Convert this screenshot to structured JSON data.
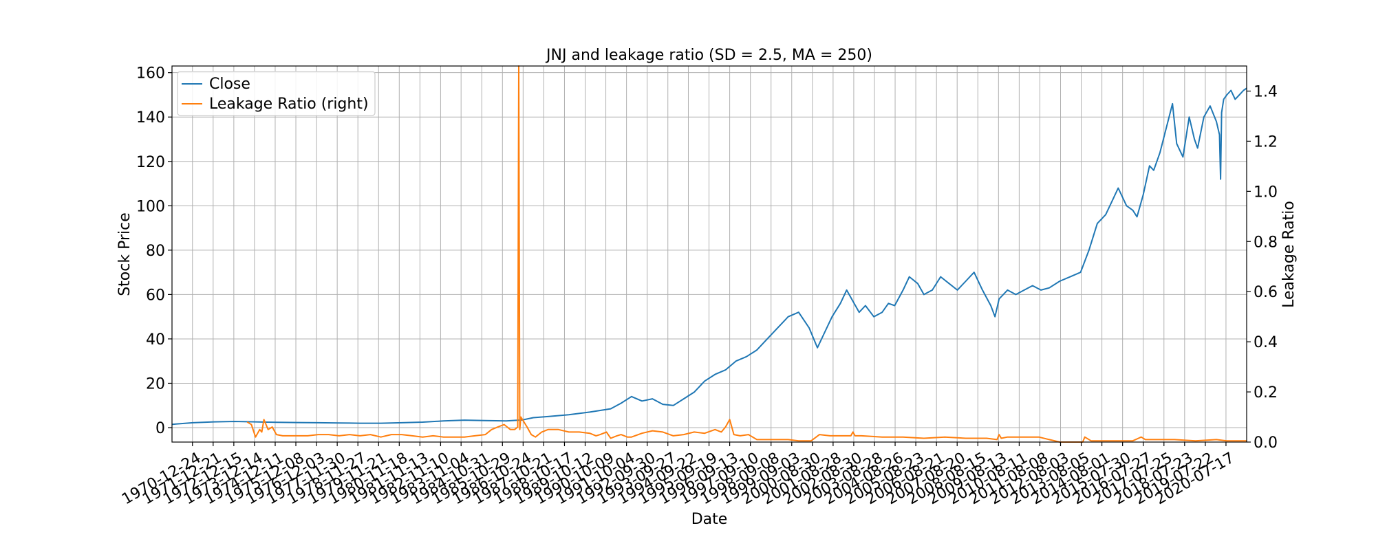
{
  "chart_data": {
    "type": "line",
    "title": "JNJ and leakage ratio (SD = 2.5, MA = 250)",
    "xlabel": "Date",
    "ylabel": "Stock Price",
    "ylabel_right": "Leakage Ratio",
    "grid": true,
    "legend_position": "top-left",
    "x_start": 1970.0,
    "x_end": 2021.45,
    "ylim": [
      -6.5,
      163
    ],
    "ylim_right": [
      0.0,
      1.5
    ],
    "yticks": [
      0,
      20,
      40,
      60,
      80,
      100,
      120,
      140,
      160
    ],
    "yticks_right": [
      0.0,
      0.2,
      0.4,
      0.6,
      0.8,
      1.0,
      1.2,
      1.4
    ],
    "yticks_right_labels": [
      "0.0",
      "0.2",
      "0.4",
      "0.6",
      "0.8",
      "1.0",
      "1.2",
      "1.4"
    ],
    "xticks": [
      {
        "label": "1970-12-24",
        "x": 1970.98
      },
      {
        "label": "1971-12-21",
        "x": 1971.97
      },
      {
        "label": "1972-12-15",
        "x": 1972.96
      },
      {
        "label": "1973-12-14",
        "x": 1973.95
      },
      {
        "label": "1974-12-11",
        "x": 1974.94
      },
      {
        "label": "1975-12-08",
        "x": 1975.93
      },
      {
        "label": "1976-12-03",
        "x": 1976.92
      },
      {
        "label": "1977-11-30",
        "x": 1977.91
      },
      {
        "label": "1978-11-27",
        "x": 1978.9
      },
      {
        "label": "1979-11-21",
        "x": 1979.89
      },
      {
        "label": "1980-11-18",
        "x": 1980.88
      },
      {
        "label": "1981-11-13",
        "x": 1981.87
      },
      {
        "label": "1982-11-10",
        "x": 1982.86
      },
      {
        "label": "1983-11-04",
        "x": 1983.84
      },
      {
        "label": "1984-10-31",
        "x": 1984.83
      },
      {
        "label": "1985-10-29",
        "x": 1985.82
      },
      {
        "label": "1986-10-24",
        "x": 1986.81
      },
      {
        "label": "1987-10-21",
        "x": 1987.8
      },
      {
        "label": "1988-10-17",
        "x": 1988.79
      },
      {
        "label": "1989-10-12",
        "x": 1989.78
      },
      {
        "label": "1990-10-09",
        "x": 1990.77
      },
      {
        "label": "1991-10-04",
        "x": 1991.76
      },
      {
        "label": "1992-09-30",
        "x": 1992.75
      },
      {
        "label": "1993-09-27",
        "x": 1993.74
      },
      {
        "label": "1994-09-22",
        "x": 1994.72
      },
      {
        "label": "1995-09-19",
        "x": 1995.71
      },
      {
        "label": "1996-09-13",
        "x": 1996.7
      },
      {
        "label": "1997-09-10",
        "x": 1997.69
      },
      {
        "label": "1998-09-08",
        "x": 1998.68
      },
      {
        "label": "1999-09-03",
        "x": 1999.67
      },
      {
        "label": "2000-08-30",
        "x": 2000.66
      },
      {
        "label": "2001-08-28",
        "x": 2001.65
      },
      {
        "label": "2002-08-30",
        "x": 2002.64
      },
      {
        "label": "2003-08-28",
        "x": 2003.63
      },
      {
        "label": "2004-08-26",
        "x": 2004.62
      },
      {
        "label": "2005-08-23",
        "x": 2005.61
      },
      {
        "label": "2006-08-21",
        "x": 2006.6
      },
      {
        "label": "2007-08-20",
        "x": 2007.59
      },
      {
        "label": "2008-08-15",
        "x": 2008.58
      },
      {
        "label": "2009-08-13",
        "x": 2009.57
      },
      {
        "label": "2010-08-11",
        "x": 2010.56
      },
      {
        "label": "2011-08-08",
        "x": 2011.55
      },
      {
        "label": "2012-08-03",
        "x": 2012.54
      },
      {
        "label": "2013-08-05",
        "x": 2013.53
      },
      {
        "label": "2014-08-01",
        "x": 2014.52
      },
      {
        "label": "2015-07-30",
        "x": 2015.51
      },
      {
        "label": "2016-07-27",
        "x": 2016.5
      },
      {
        "label": "2017-07-25",
        "x": 2017.49
      },
      {
        "label": "2018-07-23",
        "x": 2018.48
      },
      {
        "label": "2019-07-22",
        "x": 2019.47
      },
      {
        "label": "2020-07-17",
        "x": 2020.46
      }
    ],
    "series": [
      {
        "name": "Close",
        "axis": "left",
        "color": "#1f77b4",
        "x": [
          1970.0,
          1971.0,
          1972.0,
          1973.0,
          1974.0,
          1975.0,
          1976.0,
          1977.0,
          1978.0,
          1979.0,
          1980.0,
          1981.0,
          1982.0,
          1983.0,
          1984.0,
          1985.0,
          1986.0,
          1986.8,
          1987.3,
          1988.0,
          1989.0,
          1990.0,
          1991.0,
          1991.5,
          1992.0,
          1992.5,
          1993.0,
          1993.5,
          1994.0,
          1994.5,
          1995.0,
          1995.5,
          1996.0,
          1996.5,
          1997.0,
          1997.5,
          1998.0,
          1998.5,
          1999.0,
          1999.5,
          2000.0,
          2000.5,
          2000.9,
          2001.2,
          2001.6,
          2002.0,
          2002.3,
          2002.6,
          2002.9,
          2003.2,
          2003.6,
          2004.0,
          2004.3,
          2004.6,
          2005.0,
          2005.3,
          2005.7,
          2006.0,
          2006.4,
          2006.8,
          2007.2,
          2007.6,
          2008.0,
          2008.4,
          2008.8,
          2009.2,
          2009.4,
          2009.6,
          2010.0,
          2010.4,
          2010.8,
          2011.2,
          2011.6,
          2012.0,
          2012.5,
          2013.0,
          2013.5,
          2013.9,
          2014.3,
          2014.7,
          2015.0,
          2015.3,
          2015.7,
          2016.0,
          2016.2,
          2016.5,
          2016.8,
          2017.0,
          2017.3,
          2017.6,
          2017.9,
          2018.1,
          2018.4,
          2018.7,
          2018.95,
          2019.1,
          2019.4,
          2019.7,
          2020.0,
          2020.15,
          2020.2,
          2020.25,
          2020.35,
          2020.5,
          2020.7,
          2020.9,
          2021.1,
          2021.3,
          2021.45
        ],
        "values": [
          1.5,
          2.2,
          2.6,
          2.8,
          2.6,
          2.4,
          2.3,
          2.2,
          2.1,
          2.0,
          2.0,
          2.2,
          2.5,
          3.0,
          3.4,
          3.2,
          3.0,
          3.5,
          4.5,
          5.0,
          5.8,
          7.0,
          8.5,
          11.0,
          14.0,
          12.0,
          13.0,
          10.5,
          10.0,
          13.0,
          16.0,
          21.0,
          24.0,
          26.0,
          30.0,
          32.0,
          35.0,
          40.0,
          45.0,
          50.0,
          52.0,
          45.0,
          36.0,
          42.0,
          50.0,
          56.0,
          62.0,
          57.0,
          52.0,
          55.0,
          50.0,
          52.0,
          56.0,
          55.0,
          62.0,
          68.0,
          65.0,
          60.0,
          62.0,
          68.0,
          65.0,
          62.0,
          66.0,
          70.0,
          62.0,
          55.0,
          50.0,
          58.0,
          62.0,
          60.0,
          62.0,
          64.0,
          62.0,
          63.0,
          66.0,
          68.0,
          70.0,
          80.0,
          92.0,
          96.0,
          102.0,
          108.0,
          100.0,
          98.0,
          95.0,
          105.0,
          118.0,
          116.0,
          124.0,
          135.0,
          146.0,
          128.0,
          122.0,
          140.0,
          130.0,
          126.0,
          140.0,
          145.0,
          138.0,
          132.0,
          112.0,
          142.0,
          148.0,
          150.0,
          152.0,
          148.0,
          150.0,
          152.0,
          153.0
        ]
      },
      {
        "name": "Leakage Ratio (right)",
        "axis": "right",
        "color": "#ff7f0e",
        "x": [
          1973.6,
          1973.8,
          1974.0,
          1974.2,
          1974.3,
          1974.4,
          1974.6,
          1974.8,
          1975.0,
          1975.3,
          1975.6,
          1976.0,
          1976.5,
          1977.0,
          1977.5,
          1978.0,
          1978.5,
          1979.0,
          1979.5,
          1980.0,
          1980.5,
          1981.0,
          1981.5,
          1982.0,
          1982.5,
          1983.0,
          1983.5,
          1984.0,
          1984.5,
          1985.0,
          1985.3,
          1985.6,
          1985.9,
          1986.2,
          1986.4,
          1986.55,
          1986.6,
          1986.65,
          1986.7,
          1986.85,
          1987.0,
          1987.2,
          1987.4,
          1987.7,
          1988.0,
          1988.5,
          1989.0,
          1989.5,
          1990.0,
          1990.3,
          1990.5,
          1990.8,
          1991.0,
          1991.3,
          1991.5,
          1991.8,
          1992.0,
          1992.5,
          1993.0,
          1993.5,
          1994.0,
          1994.5,
          1995.0,
          1995.5,
          1996.0,
          1996.3,
          1996.5,
          1996.7,
          1996.9,
          1997.2,
          1997.6,
          1998.0,
          1998.5,
          1999.0,
          1999.5,
          2000.0,
          2000.3,
          2000.6,
          2001.0,
          2001.5,
          2002.0,
          2002.5,
          2002.6,
          2002.7,
          2003.0,
          2004.0,
          2005.0,
          2006.0,
          2007.0,
          2008.0,
          2009.0,
          2009.5,
          2009.6,
          2009.7,
          2010.0,
          2011.0,
          2011.5,
          2012.0,
          2012.5,
          2013.0,
          2013.6,
          2013.7,
          2014.0,
          2015.0,
          2016.0,
          2016.4,
          2016.6,
          2017.0,
          2018.0,
          2019.0,
          2020.0,
          2020.5,
          2021.0,
          2021.45
        ],
        "values": [
          0.08,
          0.07,
          0.02,
          0.05,
          0.04,
          0.09,
          0.05,
          0.06,
          0.03,
          0.025,
          0.025,
          0.025,
          0.025,
          0.03,
          0.03,
          0.025,
          0.03,
          0.025,
          0.03,
          0.02,
          0.03,
          0.03,
          0.025,
          0.02,
          0.025,
          0.02,
          0.02,
          0.02,
          0.025,
          0.03,
          0.05,
          0.06,
          0.07,
          0.05,
          0.05,
          0.06,
          1.5,
          0.05,
          0.1,
          0.08,
          0.06,
          0.03,
          0.02,
          0.04,
          0.05,
          0.05,
          0.04,
          0.04,
          0.035,
          0.025,
          0.03,
          0.04,
          0.015,
          0.025,
          0.03,
          0.02,
          0.02,
          0.035,
          0.045,
          0.04,
          0.025,
          0.03,
          0.04,
          0.035,
          0.05,
          0.04,
          0.06,
          0.09,
          0.03,
          0.025,
          0.03,
          0.01,
          0.01,
          0.01,
          0.01,
          0.005,
          0.005,
          0.005,
          0.03,
          0.025,
          0.025,
          0.025,
          0.04,
          0.025,
          0.025,
          0.02,
          0.02,
          0.015,
          0.02,
          0.015,
          0.015,
          0.01,
          0.03,
          0.015,
          0.02,
          0.02,
          0.02,
          0.01,
          0.0,
          0.0,
          0.0,
          0.02,
          0.005,
          0.005,
          0.005,
          0.02,
          0.01,
          0.01,
          0.01,
          0.005,
          0.01,
          0.005,
          0.005,
          0.005
        ]
      }
    ]
  }
}
